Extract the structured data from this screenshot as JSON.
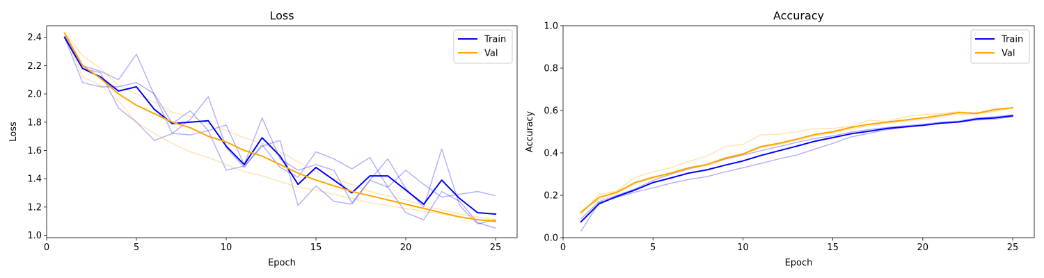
{
  "colors": {
    "train": "#0000ff",
    "val": "#ffa500"
  },
  "chart_data": [
    {
      "type": "line",
      "title": "Loss",
      "xlabel": "Epoch",
      "ylabel": "Loss",
      "xlim": [
        0,
        26.2
      ],
      "ylim": [
        0.983,
        2.482
      ],
      "xticks": [
        0,
        5,
        10,
        15,
        20,
        25
      ],
      "yticks": [
        1.0,
        1.2,
        1.4,
        1.6,
        1.8,
        2.0,
        2.2,
        2.4
      ],
      "ytick_format": 1,
      "legend": "top-right",
      "x": [
        1,
        2,
        3,
        4,
        5,
        6,
        7,
        8,
        9,
        10,
        11,
        12,
        13,
        14,
        15,
        16,
        17,
        18,
        19,
        20,
        21,
        22,
        23,
        24,
        25
      ],
      "series": [
        {
          "name": "Train",
          "color": "#0000ff",
          "width": 2,
          "opacity": 1,
          "values": [
            2.4,
            2.18,
            2.12,
            2.02,
            2.05,
            1.89,
            1.79,
            1.8,
            1.81,
            1.63,
            1.5,
            1.69,
            1.56,
            1.36,
            1.48,
            1.39,
            1.3,
            1.42,
            1.42,
            1.32,
            1.22,
            1.39,
            1.26,
            1.16,
            1.15
          ]
        },
        {
          "name": "Val",
          "color": "#ffa500",
          "width": 2,
          "opacity": 1,
          "values": [
            2.43,
            2.2,
            2.11,
            2.0,
            1.92,
            1.86,
            1.8,
            1.76,
            1.7,
            1.66,
            1.6,
            1.56,
            1.5,
            1.44,
            1.39,
            1.35,
            1.31,
            1.28,
            1.25,
            1.22,
            1.19,
            1.16,
            1.13,
            1.11,
            1.1
          ]
        }
      ],
      "runs": [
        {
          "color": "#0000ff",
          "opacity": 0.3,
          "values": [
            2.4,
            2.08,
            2.05,
            2.05,
            2.08,
            2.0,
            1.79,
            1.88,
            1.74,
            1.78,
            1.5,
            1.83,
            1.54,
            1.46,
            1.5,
            1.46,
            1.23,
            1.39,
            1.54,
            1.33,
            1.2,
            1.61,
            1.21,
            1.08,
            1.11
          ]
        },
        {
          "color": "#0000ff",
          "opacity": 0.3,
          "values": [
            2.41,
            2.2,
            2.16,
            2.1,
            2.28,
            1.99,
            1.72,
            1.71,
            1.74,
            1.46,
            1.49,
            1.63,
            1.67,
            1.21,
            1.35,
            1.24,
            1.22,
            1.39,
            1.34,
            1.46,
            1.36,
            1.27,
            1.29,
            1.31,
            1.28
          ]
        },
        {
          "color": "#0000ff",
          "opacity": 0.3,
          "values": [
            2.4,
            2.18,
            2.15,
            1.9,
            1.8,
            1.67,
            1.72,
            1.82,
            1.98,
            1.62,
            1.48,
            1.64,
            1.48,
            1.41,
            1.59,
            1.54,
            1.47,
            1.55,
            1.34,
            1.16,
            1.11,
            1.31,
            1.24,
            1.09,
            1.05
          ]
        },
        {
          "color": "#ffa500",
          "opacity": 0.3,
          "values": [
            2.42,
            2.12,
            2.06,
            1.95,
            1.8,
            1.72,
            1.65,
            1.59,
            1.55,
            1.5,
            1.45,
            1.42,
            1.38,
            1.34,
            1.32,
            1.29,
            1.26,
            1.23,
            1.21,
            1.19,
            1.17,
            1.15,
            1.13,
            1.11,
            1.09
          ]
        },
        {
          "color": "#ffa500",
          "opacity": 0.3,
          "values": [
            2.43,
            2.27,
            2.18,
            2.06,
            2.0,
            1.94,
            1.87,
            1.84,
            1.79,
            1.74,
            1.69,
            1.65,
            1.59,
            1.52,
            1.45,
            1.4,
            1.36,
            1.31,
            1.28,
            1.25,
            1.21,
            1.18,
            1.15,
            1.13,
            1.11
          ]
        }
      ]
    },
    {
      "type": "line",
      "title": "Accuracy",
      "xlabel": "Epoch",
      "ylabel": "Accuracy",
      "xlim": [
        0,
        26.2
      ],
      "ylim": [
        0,
        1.0
      ],
      "xticks": [
        0,
        5,
        10,
        15,
        20,
        25
      ],
      "yticks": [
        0.0,
        0.2,
        0.4,
        0.6,
        0.8,
        1.0
      ],
      "ytick_format": 1,
      "legend": "top-right",
      "x": [
        1,
        2,
        3,
        4,
        5,
        6,
        7,
        8,
        9,
        10,
        11,
        12,
        13,
        14,
        15,
        16,
        17,
        18,
        19,
        20,
        21,
        22,
        23,
        24,
        25
      ],
      "series": [
        {
          "name": "Train",
          "color": "#0000ff",
          "width": 2,
          "opacity": 1,
          "values": [
            0.075,
            0.16,
            0.195,
            0.225,
            0.26,
            0.282,
            0.305,
            0.32,
            0.342,
            0.362,
            0.388,
            0.41,
            0.432,
            0.455,
            0.472,
            0.49,
            0.502,
            0.515,
            0.523,
            0.53,
            0.54,
            0.546,
            0.56,
            0.565,
            0.575
          ]
        },
        {
          "name": "Val",
          "color": "#ffa500",
          "width": 2,
          "opacity": 1,
          "values": [
            0.12,
            0.19,
            0.215,
            0.26,
            0.285,
            0.305,
            0.33,
            0.345,
            0.375,
            0.395,
            0.43,
            0.445,
            0.465,
            0.487,
            0.5,
            0.52,
            0.535,
            0.545,
            0.555,
            0.565,
            0.577,
            0.59,
            0.587,
            0.605,
            0.613
          ]
        }
      ],
      "runs": [
        {
          "color": "#0000ff",
          "opacity": 0.3,
          "values": [
            0.03,
            0.165,
            0.19,
            0.215,
            0.235,
            0.257,
            0.275,
            0.288,
            0.31,
            0.33,
            0.35,
            0.372,
            0.39,
            0.418,
            0.445,
            0.475,
            0.492,
            0.51,
            0.52,
            0.53,
            0.54,
            0.545,
            0.555,
            0.56,
            0.57
          ]
        },
        {
          "color": "#0000ff",
          "opacity": 0.3,
          "values": [
            0.09,
            0.17,
            0.2,
            0.23,
            0.27,
            0.3,
            0.325,
            0.345,
            0.37,
            0.39,
            0.41,
            0.43,
            0.45,
            0.468,
            0.48,
            0.498,
            0.51,
            0.52,
            0.528,
            0.535,
            0.545,
            0.55,
            0.565,
            0.57,
            0.58
          ]
        },
        {
          "color": "#ffa500",
          "opacity": 0.3,
          "values": [
            0.11,
            0.205,
            0.22,
            0.285,
            0.31,
            0.33,
            0.36,
            0.385,
            0.43,
            0.44,
            0.485,
            0.488,
            0.5,
            0.515,
            0.515,
            0.525,
            0.555,
            0.548,
            0.57,
            0.58,
            0.585,
            0.595,
            0.585,
            0.595,
            0.615
          ]
        },
        {
          "color": "#ffa500",
          "opacity": 0.3,
          "values": [
            0.125,
            0.18,
            0.21,
            0.255,
            0.28,
            0.3,
            0.325,
            0.34,
            0.37,
            0.39,
            0.425,
            0.44,
            0.46,
            0.48,
            0.495,
            0.512,
            0.528,
            0.54,
            0.55,
            0.558,
            0.57,
            0.583,
            0.583,
            0.6,
            0.61
          ]
        }
      ]
    }
  ]
}
